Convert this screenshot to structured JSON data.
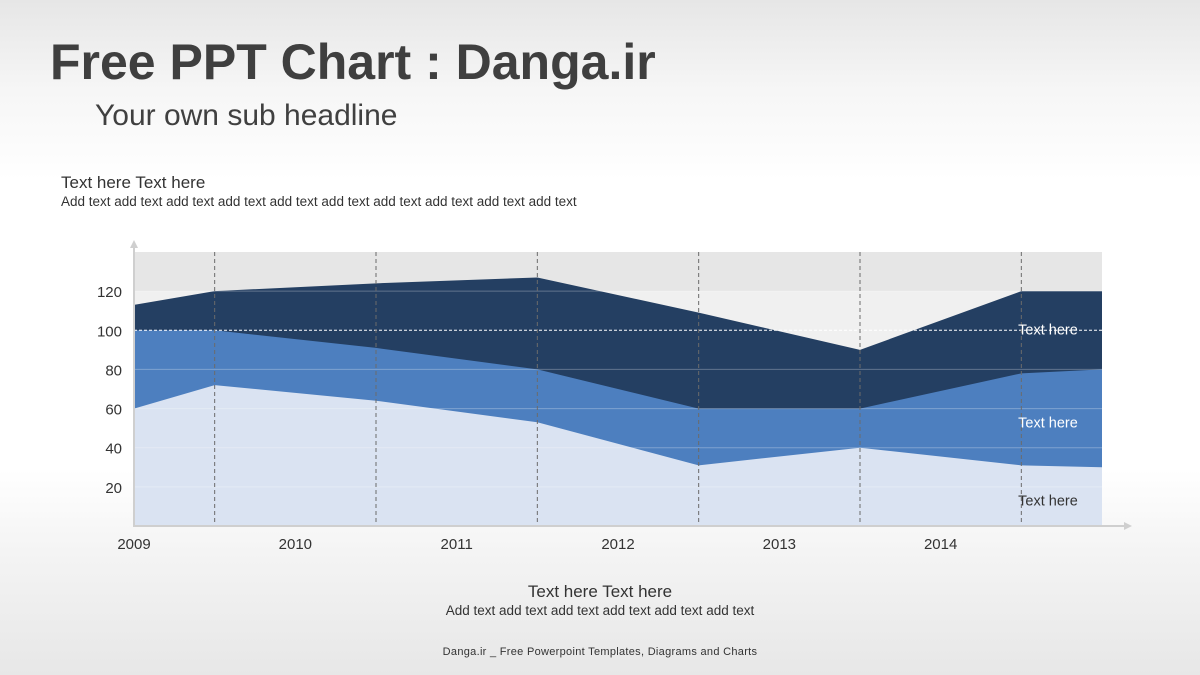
{
  "header": {
    "title": "Free PPT Chart : Danga.ir",
    "subtitle": "Your own sub headline"
  },
  "top_block": {
    "heading": "Text here Text here",
    "text": "Add text add text add text add text add text add text add text add text add text add text"
  },
  "bottom_block": {
    "heading": "Text here Text here",
    "text": "Add text add text add text add text add text add text"
  },
  "footer": {
    "text": "Danga.ir _ Free Powerpoint Templates, Diagrams and Charts"
  },
  "colors": {
    "series_light": "#dae3f2",
    "series_mid": "#4d7fbf",
    "series_dark": "#243f62",
    "plot_band": "#e6e6e6",
    "plot_band_light": "#f0f0f0"
  },
  "chart_data": {
    "type": "area",
    "categories": [
      "2009",
      "2010",
      "2011",
      "2012",
      "2013",
      "2014"
    ],
    "x": [
      0,
      0.5,
      1.5,
      2.5,
      3.5,
      4.5,
      5.5,
      6
    ],
    "ylim": [
      0,
      140
    ],
    "yticks": [
      20,
      40,
      60,
      80,
      100,
      120
    ],
    "grid": true,
    "series": [
      {
        "name": "Text here",
        "values": [
          60,
          72,
          64,
          53,
          31,
          40,
          31,
          30
        ]
      },
      {
        "name": "Text here",
        "values": [
          100,
          100,
          91,
          80,
          60,
          60,
          78,
          80
        ]
      },
      {
        "name": "Text here",
        "values": [
          113,
          120,
          124,
          127,
          109,
          90,
          120,
          120
        ]
      }
    ]
  }
}
